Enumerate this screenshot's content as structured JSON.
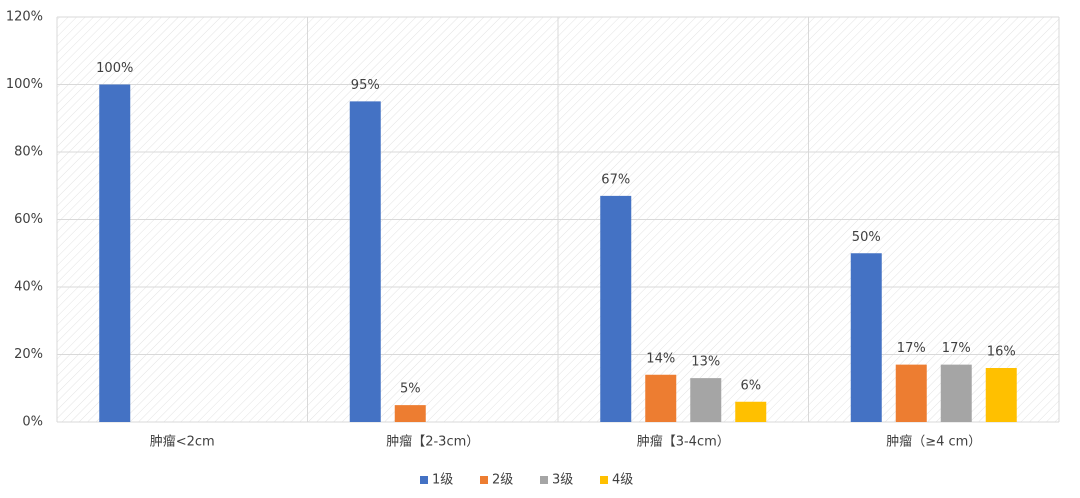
{
  "chart_data": {
    "type": "bar",
    "categories": [
      "肿瘤<2cm",
      "肿瘤【2-3cm）",
      "肿瘤【3-4cm）",
      "肿瘤（≥4 cm）"
    ],
    "series": [
      {
        "name": "1级",
        "color": "#4472c4",
        "values": [
          100,
          95,
          67,
          50
        ],
        "value_labels": [
          "100%",
          "95%",
          "67%",
          "50%"
        ]
      },
      {
        "name": "2级",
        "color": "#ed7d31",
        "values": [
          null,
          5,
          14,
          17
        ],
        "value_labels": [
          null,
          "5%",
          "14%",
          "17%"
        ]
      },
      {
        "name": "3级",
        "color": "#a5a5a5",
        "values": [
          null,
          null,
          13,
          17
        ],
        "value_labels": [
          null,
          null,
          "13%",
          "17%"
        ]
      },
      {
        "name": "4级",
        "color": "#ffc000",
        "values": [
          null,
          null,
          6,
          16
        ],
        "value_labels": [
          null,
          null,
          "6%",
          "16%"
        ]
      }
    ],
    "ylim": [
      0,
      120
    ],
    "yticks": [
      {
        "value": 0,
        "label": "0%"
      },
      {
        "value": 20,
        "label": "20%"
      },
      {
        "value": 40,
        "label": "40%"
      },
      {
        "value": 60,
        "label": "60%"
      },
      {
        "value": 80,
        "label": "80%"
      },
      {
        "value": 100,
        "label": "100%"
      },
      {
        "value": 120,
        "label": "120%"
      }
    ],
    "grid": true,
    "legend": "bottom"
  }
}
